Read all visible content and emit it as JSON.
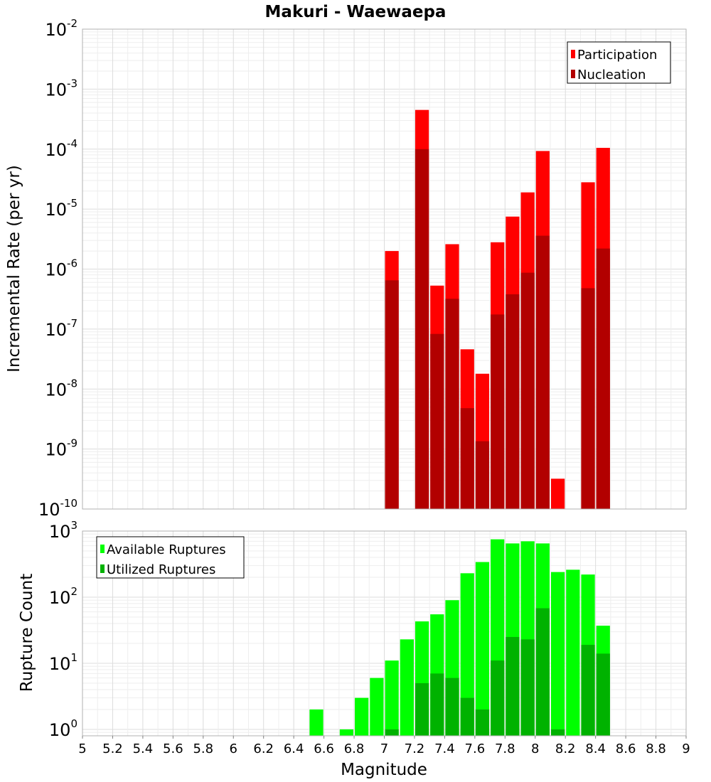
{
  "chart_data": [
    {
      "type": "bar",
      "title": "Makuri - Waewaepa",
      "xlabel": "",
      "ylabel": "Incremental Rate (per yr)",
      "yscale": "log",
      "ylim": [
        1e-10,
        0.01
      ],
      "xlim": [
        5,
        9
      ],
      "grid": true,
      "legend_position": "top-right",
      "bin_width": 0.1,
      "x": [
        7.05,
        7.25,
        7.35,
        7.45,
        7.55,
        7.65,
        7.75,
        7.85,
        7.95,
        8.05,
        8.15,
        8.35,
        8.45
      ],
      "series": [
        {
          "name": "Participation",
          "color": "#ff0000",
          "values": [
            2e-06,
            0.00045,
            5.3e-07,
            2.6e-06,
            4.6e-08,
            1.8e-08,
            2.8e-06,
            7.5e-06,
            1.9e-05,
            9.3e-05,
            3.2e-10,
            2.8e-05,
            0.000105
          ]
        },
        {
          "name": "Nucleation",
          "color": "#b20000",
          "values": [
            6.5e-07,
            0.0001,
            8.3e-08,
            3.2e-07,
            4.8e-09,
            1.35e-09,
            1.75e-07,
            3.8e-07,
            8.7e-07,
            3.6e-06,
            null,
            4.8e-07,
            2.2e-06
          ]
        }
      ],
      "yticks": [
        {
          "base": "10",
          "exp": "-10"
        },
        {
          "base": "10",
          "exp": "-9"
        },
        {
          "base": "10",
          "exp": "-8"
        },
        {
          "base": "10",
          "exp": "-7"
        },
        {
          "base": "10",
          "exp": "-6"
        },
        {
          "base": "10",
          "exp": "-5"
        },
        {
          "base": "10",
          "exp": "-4"
        },
        {
          "base": "10",
          "exp": "-3"
        },
        {
          "base": "10",
          "exp": "-2"
        }
      ]
    },
    {
      "type": "bar",
      "title": "",
      "xlabel": "Magnitude",
      "ylabel": "Rupture Count",
      "yscale": "log",
      "ylim": [
        0.8,
        1000
      ],
      "xlim": [
        5,
        9
      ],
      "grid": true,
      "legend_position": "top-left",
      "bin_width": 0.1,
      "x": [
        6.55,
        6.75,
        6.85,
        6.95,
        7.05,
        7.15,
        7.25,
        7.35,
        7.45,
        7.55,
        7.65,
        7.75,
        7.85,
        7.95,
        8.05,
        8.15,
        8.25,
        8.35,
        8.45
      ],
      "series": [
        {
          "name": "Available Ruptures",
          "color": "#00ff00",
          "values": [
            2,
            1,
            3,
            6,
            11,
            23,
            43,
            55,
            90,
            230,
            340,
            750,
            650,
            700,
            650,
            240,
            260,
            220,
            37
          ]
        },
        {
          "name": "Utilized Ruptures",
          "color": "#00b200",
          "values": [
            null,
            null,
            null,
            null,
            1,
            null,
            5,
            7,
            6,
            3,
            2,
            11,
            25,
            23,
            68,
            1,
            null,
            19,
            14
          ]
        }
      ],
      "xticks": [
        "5",
        "5.2",
        "5.4",
        "5.6",
        "5.8",
        "6",
        "6.2",
        "6.4",
        "6.6",
        "6.8",
        "7",
        "7.2",
        "7.4",
        "7.6",
        "7.8",
        "8",
        "8.2",
        "8.4",
        "8.6",
        "8.8",
        "9"
      ],
      "yticks": [
        {
          "base": "10",
          "exp": "0"
        },
        {
          "base": "10",
          "exp": "1"
        },
        {
          "base": "10",
          "exp": "2"
        },
        {
          "base": "10",
          "exp": "3"
        }
      ]
    }
  ]
}
